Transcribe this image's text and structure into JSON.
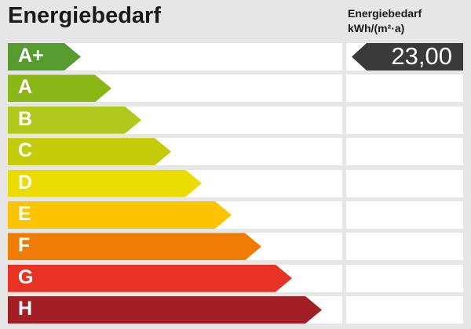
{
  "page": {
    "background": "#e6e6e6",
    "title": "Energiebedarf"
  },
  "header_right": {
    "line1": "Energiebedarf",
    "line2": "kWh/(m²·a)"
  },
  "value_indicator": {
    "value_label": "23,00",
    "value": 23.0,
    "points_to_class": "A+",
    "color": "#3a3a3a",
    "text_color": "#ffffff"
  },
  "chart_data": {
    "type": "bar",
    "title": "Energiebedarf",
    "unit": "kWh/(m²·a)",
    "orientation": "horizontal",
    "value": 23.0,
    "value_label": "23,00",
    "value_class": "A+",
    "categories": [
      "A+",
      "A",
      "B",
      "C",
      "D",
      "E",
      "F",
      "G",
      "H"
    ],
    "classes": [
      {
        "label": "A+",
        "color": "#559b2d",
        "arrow_width": 93
      },
      {
        "label": "A",
        "color": "#8ab616",
        "arrow_width": 132
      },
      {
        "label": "B",
        "color": "#afc91c",
        "arrow_width": 170
      },
      {
        "label": "C",
        "color": "#c4cc0a",
        "arrow_width": 208
      },
      {
        "label": "D",
        "color": "#ebdc00",
        "arrow_width": 247
      },
      {
        "label": "E",
        "color": "#fcc300",
        "arrow_width": 285
      },
      {
        "label": "F",
        "color": "#ef7d05",
        "arrow_width": 323
      },
      {
        "label": "G",
        "color": "#e63323",
        "arrow_width": 362
      },
      {
        "label": "H",
        "color": "#a21f25",
        "arrow_width": 400
      }
    ]
  }
}
